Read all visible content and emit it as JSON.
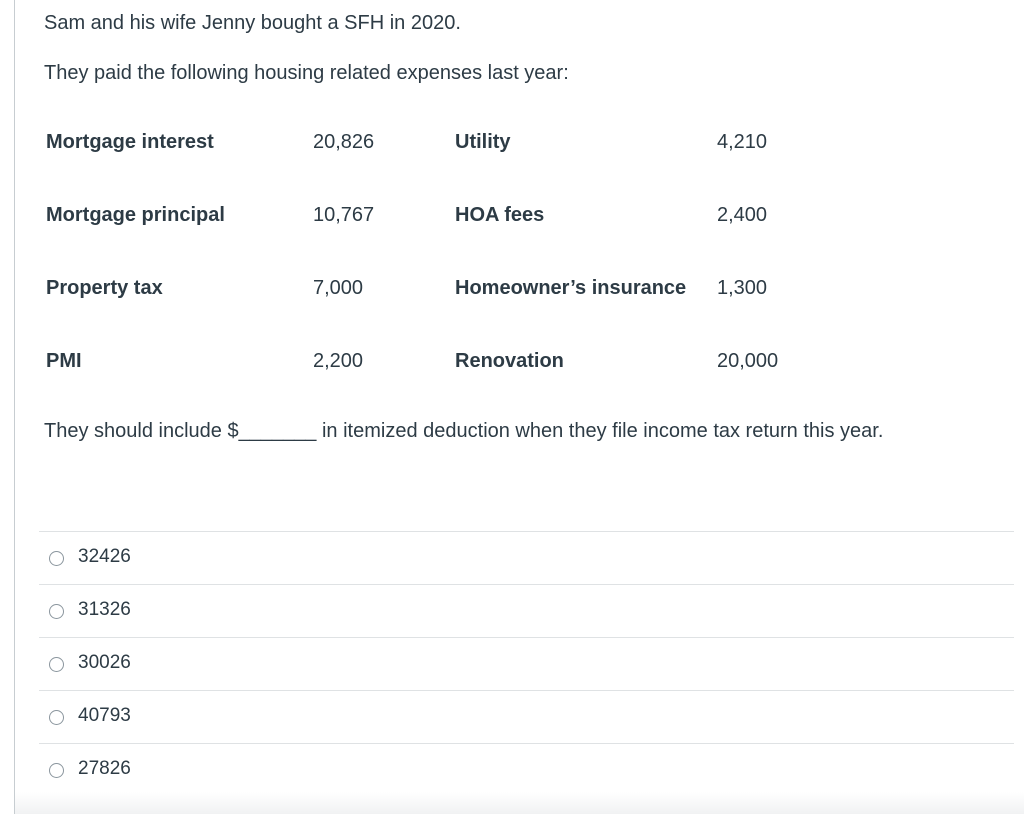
{
  "intro": {
    "line1": "Sam and his wife Jenny bought a SFH in 2020.",
    "line2": "They paid the following housing related expenses last year:"
  },
  "expenses": {
    "left": [
      {
        "label": "Mortgage interest",
        "value": "20,826"
      },
      {
        "label": "Mortgage principal",
        "value": "10,767"
      },
      {
        "label": "Property tax",
        "value": "7,000"
      },
      {
        "label": "PMI",
        "value": "2,200"
      }
    ],
    "right": [
      {
        "label": "Utility",
        "value": "4,210"
      },
      {
        "label": "HOA fees",
        "value": "2,400"
      },
      {
        "label": "Homeowner’s insurance",
        "value": "1,300"
      },
      {
        "label": "Renovation",
        "value": "20,000"
      }
    ]
  },
  "question": {
    "text": "They should include $_______ in itemized deduction when they file income tax return this year."
  },
  "answers": [
    {
      "label": "32426"
    },
    {
      "label": "31326"
    },
    {
      "label": "30026"
    },
    {
      "label": "40793"
    },
    {
      "label": "27826"
    }
  ]
}
